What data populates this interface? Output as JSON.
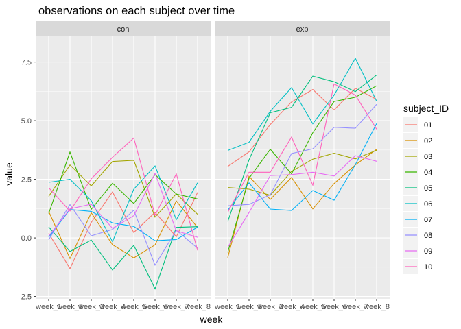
{
  "chart_data": {
    "type": "line",
    "title": "observations on each subject over time",
    "xlabel": "week",
    "ylabel": "value",
    "x": [
      "week_1",
      "week_2",
      "week_3",
      "week_4",
      "week_5",
      "week_6",
      "week_7",
      "week_8"
    ],
    "ylim": [
      -2.6,
      8.6
    ],
    "yticks": [
      -2.5,
      0.0,
      2.5,
      5.0,
      7.5
    ],
    "ytick_labels": [
      "-2.5",
      "0.0",
      "2.5",
      "5.0",
      "7.5"
    ],
    "grid": true,
    "legend": {
      "title": "subject_ID",
      "position": "right",
      "entries": [
        "01",
        "02",
        "03",
        "04",
        "05",
        "06",
        "07",
        "08",
        "09",
        "10"
      ],
      "colors": [
        "#F8766D",
        "#D89000",
        "#A3A500",
        "#39B600",
        "#00BF7D",
        "#00BFC4",
        "#00B0F6",
        "#9590FF",
        "#E76BF3",
        "#FF62BC"
      ]
    },
    "panels": [
      {
        "label": "con",
        "series": [
          {
            "name": "01",
            "values": [
              0.2,
              -1.31,
              0.66,
              1.96,
              0.23,
              1.09,
              0.05,
              1.94
            ]
          },
          {
            "name": "02",
            "values": [
              1.13,
              -0.88,
              1.07,
              -0.29,
              -0.85,
              -0.3,
              1.58,
              0.44
            ]
          },
          {
            "name": "03",
            "values": [
              1.77,
              3.11,
              2.22,
              3.26,
              3.31,
              0.89,
              1.88,
              1.01
            ]
          },
          {
            "name": "04",
            "values": [
              1.04,
              3.66,
              1.22,
              2.33,
              1.47,
              2.7,
              1.87,
              1.66
            ]
          },
          {
            "name": "05",
            "values": [
              0.47,
              -0.58,
              -0.09,
              -1.37,
              -0.32,
              -2.17,
              0.45,
              0.48
            ]
          },
          {
            "name": "06",
            "values": [
              2.37,
              2.5,
              1.59,
              -0.16,
              2.08,
              3.07,
              0.78,
              2.35
            ]
          },
          {
            "name": "07",
            "values": [
              0.03,
              1.21,
              1.13,
              0.64,
              0.49,
              -0.12,
              -0.07,
              0.46
            ]
          },
          {
            "name": "08",
            "values": [
              -0.08,
              1.42,
              0.09,
              0.36,
              1.18,
              -1.16,
              0.33,
              -0.44
            ]
          },
          {
            "name": "09",
            "values": [
              0.08,
              1.24,
              1.44,
              0.41,
              0.95,
              2.75,
              0.3,
              0.03
            ]
          },
          {
            "name": "10",
            "values": [
              2.14,
              1.15,
              2.52,
              3.44,
              4.26,
              0.97,
              2.73,
              -0.53
            ]
          }
        ]
      },
      {
        "label": "exp",
        "series": [
          {
            "name": "01",
            "values": [
              3.05,
              3.67,
              4.84,
              5.8,
              6.33,
              5.46,
              6.38,
              5.91
            ]
          },
          {
            "name": "02",
            "values": [
              -0.84,
              2.63,
              1.64,
              2.58,
              1.24,
              2.32,
              3.11,
              3.78
            ]
          },
          {
            "name": "03",
            "values": [
              2.15,
              2.08,
              1.82,
              2.84,
              3.36,
              3.61,
              3.37,
              3.74
            ]
          },
          {
            "name": "04",
            "values": [
              -0.62,
              2.54,
              3.78,
              2.73,
              4.49,
              5.82,
              6.0,
              6.49
            ]
          },
          {
            "name": "05",
            "values": [
              0.7,
              3.33,
              5.34,
              5.57,
              6.9,
              6.66,
              6.24,
              6.95
            ]
          },
          {
            "name": "06",
            "values": [
              3.73,
              4.08,
              5.4,
              6.41,
              4.87,
              6.09,
              7.66,
              5.83
            ]
          },
          {
            "name": "07",
            "values": [
              1.18,
              2.35,
              1.23,
              1.17,
              2.02,
              1.61,
              3.13,
              4.88
            ]
          },
          {
            "name": "08",
            "values": [
              1.37,
              1.43,
              1.84,
              3.6,
              3.8,
              4.72,
              4.68,
              5.7
            ]
          },
          {
            "name": "09",
            "values": [
              -0.4,
              1.08,
              2.66,
              2.7,
              2.8,
              2.64,
              3.51,
              3.27
            ]
          },
          {
            "name": "10",
            "values": [
              1.09,
              2.8,
              2.8,
              4.3,
              2.25,
              6.57,
              6.09,
              4.64
            ]
          }
        ]
      }
    ]
  }
}
